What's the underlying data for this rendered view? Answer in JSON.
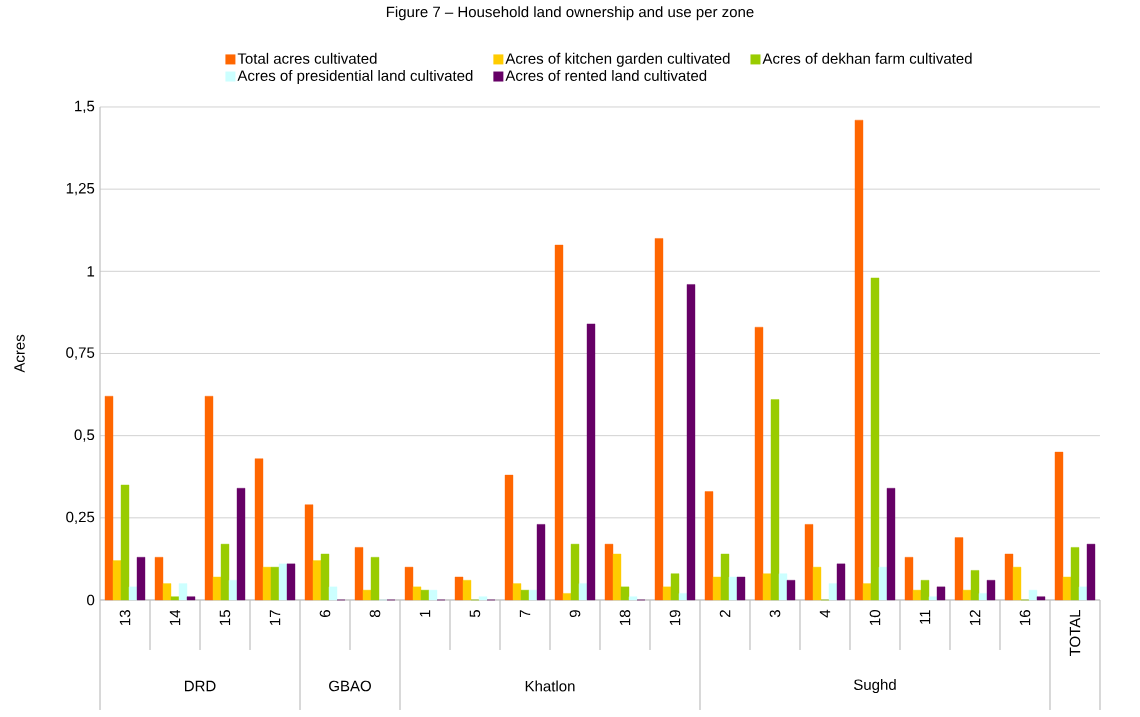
{
  "chart_data": {
    "type": "bar",
    "title": "Figure 7 – Household land ownership and use per zone",
    "ylabel": "Acres",
    "categories": [
      "13",
      "14",
      "15",
      "17",
      "6",
      "8",
      "1",
      "5",
      "7",
      "9",
      "18",
      "19",
      "2",
      "3",
      "4",
      "10",
      "11",
      "12",
      "16",
      "TOTAL"
    ],
    "series": [
      {
        "name": "Total acres cultivated",
        "color": "#ff6600",
        "values": [
          0.62,
          0.13,
          0.62,
          0.43,
          0.29,
          0.16,
          0.1,
          0.07,
          0.38,
          1.08,
          0.17,
          1.1,
          0.33,
          0.83,
          0.23,
          1.46,
          0.13,
          0.19,
          0.14,
          0.45
        ]
      },
      {
        "name": "Acres of kitchen garden cultivated",
        "color": "#ffcc00",
        "values": [
          0.12,
          0.05,
          0.07,
          0.1,
          0.12,
          0.03,
          0.04,
          0.06,
          0.05,
          0.02,
          0.14,
          0.04,
          0.07,
          0.08,
          0.1,
          0.05,
          0.03,
          0.03,
          0.1,
          0.07
        ]
      },
      {
        "name": "Acres of dekhan farm cultivated",
        "color": "#99cc00",
        "values": [
          0.35,
          0.01,
          0.17,
          0.1,
          0.14,
          0.13,
          0.03,
          0,
          0.03,
          0.17,
          0.04,
          0.08,
          0.14,
          0.61,
          0,
          0.98,
          0.06,
          0.09,
          0,
          0.16
        ]
      },
      {
        "name": "Acres of presidential land cultivated",
        "color": "#ccffff",
        "values": [
          0.04,
          0.05,
          0.06,
          0.11,
          0.04,
          0,
          0.03,
          0.01,
          0.03,
          0.05,
          0.01,
          0.02,
          0.07,
          0.08,
          0.05,
          0.1,
          0.01,
          0.02,
          0.03,
          0.04
        ]
      },
      {
        "name": "Acres of rented land cultivated",
        "color": "#660066",
        "values": [
          0.13,
          0.01,
          0.34,
          0.11,
          0,
          0,
          0,
          0,
          0.23,
          0.84,
          0,
          0.96,
          0.07,
          0.06,
          0.11,
          0.34,
          0.04,
          0.06,
          0.01,
          0.17
        ]
      }
    ],
    "ylim": [
      0,
      1.5
    ],
    "yticks": [
      0,
      {
        "value": 0.25,
        "label": "0,25"
      },
      {
        "value": 0.5,
        "label": "0,5"
      },
      {
        "value": 0.75,
        "label": "0,75"
      },
      1,
      {
        "value": 1.25,
        "label": "1,25"
      },
      {
        "value": 1.5,
        "label": "1,5"
      }
    ],
    "grid": "y",
    "legend": "top",
    "annotations": [
      "DRD",
      "GBAO",
      "Khatlon",
      "Sughd"
    ]
  }
}
